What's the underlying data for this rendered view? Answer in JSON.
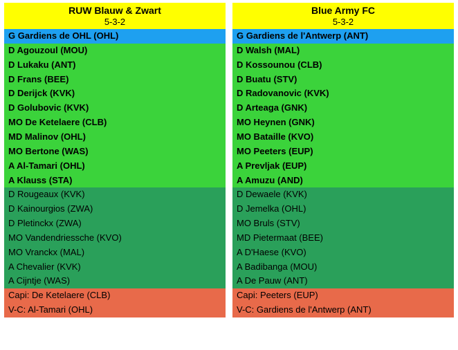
{
  "colors": {
    "header_bg": "#ffff00",
    "gk_bg": "#1ea0f0",
    "starter_bg": "#3bd33b",
    "sub_bg": "#2aa05a",
    "cap_bg": "#e86a4a",
    "text": "#000000"
  },
  "teams": [
    {
      "name": "RUW Blauw & Zwart",
      "formation": "5-3-2",
      "goalkeeper": "G Gardiens de OHL (OHL)",
      "starters": [
        "D Agouzoul (MOU)",
        "D Lukaku (ANT)",
        "D Frans (BEE)",
        "D Derijck (KVK)",
        "D Golubovic (KVK)",
        "MO De Ketelaere (CLB)",
        "MD Malinov (OHL)",
        "MO Bertone (WAS)",
        "A Al-Tamari (OHL)",
        "A Klauss (STA)"
      ],
      "subs": [
        "D Rougeaux (KVK)",
        "D Kainourgios (ZWA)",
        "D Pletinckx (ZWA)",
        "MO Vandendriessche (KVO)",
        "MO Vranckx (MAL)",
        "A Chevalier (KVK)",
        "A Cijntje (WAS)"
      ],
      "caps": [
        "Capi: De Ketelaere (CLB)",
        "V-C: Al-Tamari (OHL)"
      ]
    },
    {
      "name": "Blue Army FC",
      "formation": "5-3-2",
      "goalkeeper": "G Gardiens de l'Antwerp (ANT)",
      "starters": [
        "D Walsh (MAL)",
        "D Kossounou (CLB)",
        "D Buatu (STV)",
        "D Radovanovic (KVK)",
        "D Arteaga (GNK)",
        "MO Heynen (GNK)",
        "MO Bataille (KVO)",
        "MO Peeters (EUP)",
        "A Prevljak (EUP)",
        "A Amuzu (AND)"
      ],
      "subs": [
        "D Dewaele (KVK)",
        "D Jemelka (OHL)",
        "MO Bruls (STV)",
        "MD Pietermaat (BEE)",
        "A D'Haese (KVO)",
        "A Badibanga (MOU)",
        "A De Pauw (ANT)"
      ],
      "caps": [
        "Capi: Peeters (EUP)",
        "V-C: Gardiens de l'Antwerp (ANT)"
      ]
    }
  ]
}
